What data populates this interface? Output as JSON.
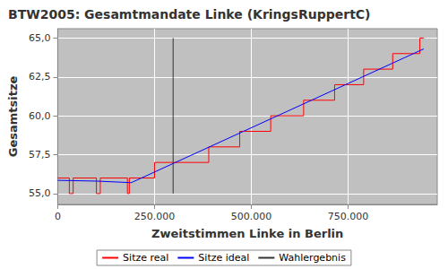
{
  "chart_data": {
    "type": "line",
    "title": "BTW2005: Gesamtmandate Linke (KringsRuppertC)",
    "x_label": "Zweitstimmen Linke in Berlin",
    "y_label": "Gesamtsitze",
    "xlim": [
      0,
      980000
    ],
    "xticks": [
      0,
      {
        "value": 250000,
        "label": "250.000"
      },
      {
        "value": 500000,
        "label": "500.000"
      },
      {
        "value": 750000,
        "label": "750.000"
      }
    ],
    "ylim": [
      54.3,
      65.6
    ],
    "yticks": [
      {
        "value": 55,
        "label": "55,0"
      },
      {
        "value": 57.5,
        "label": "57,5"
      },
      {
        "value": 60,
        "label": "60,0"
      },
      {
        "value": 62.5,
        "label": "62,5"
      },
      {
        "value": 65,
        "label": "65,0"
      }
    ],
    "grid": true,
    "legend": "bottom",
    "series": [
      {
        "name": "Sitze real",
        "color": "#ff0000",
        "type": "step",
        "x": [
          0,
          30000,
          40000,
          100000,
          110000,
          180000,
          185000,
          250000,
          390000,
          470000,
          550000,
          635000,
          715000,
          790000,
          865000,
          935000,
          945000
        ],
        "values": [
          56,
          55,
          56,
          55,
          56,
          55,
          56,
          57,
          58,
          59,
          60,
          61,
          62,
          63,
          64,
          65,
          65
        ]
      },
      {
        "name": "Sitze ideal",
        "color": "#0000ff",
        "type": "line",
        "x": [
          0,
          100000,
          190000,
          945000
        ],
        "values": [
          55.85,
          55.8,
          55.7,
          64.3
        ]
      },
      {
        "name": "Wahlergebnis",
        "color": "#333333",
        "type": "line",
        "x": [
          298000,
          298000
        ],
        "values": [
          55,
          65
        ]
      }
    ]
  }
}
